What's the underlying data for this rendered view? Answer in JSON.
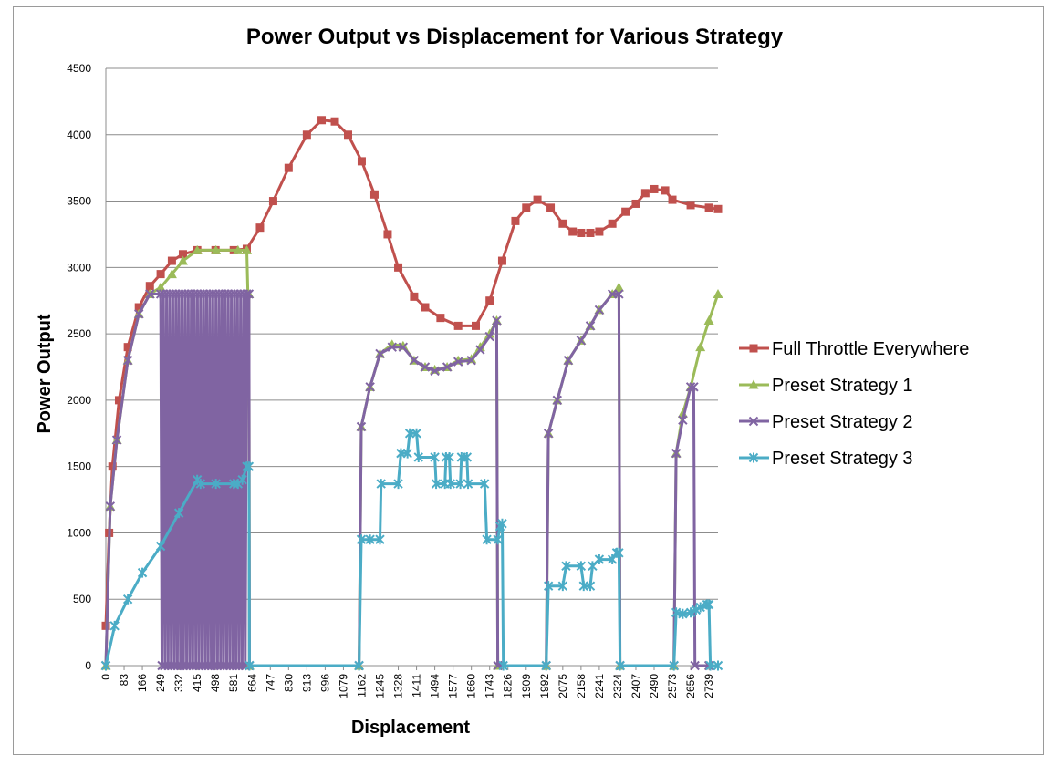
{
  "chart_data": {
    "type": "line",
    "title": "Power Output vs Displacement for Various Strategy",
    "xlabel": "Displacement",
    "ylabel": "Power Output",
    "ylim": [
      0,
      4500
    ],
    "xlim": [
      0,
      2780
    ],
    "yticks": [
      0,
      500,
      1000,
      1500,
      2000,
      2500,
      3000,
      3500,
      4000,
      4500
    ],
    "xtick_labels": [
      "0",
      "83",
      "166",
      "249",
      "332",
      "415",
      "498",
      "581",
      "664",
      "747",
      "830",
      "913",
      "996",
      "1079",
      "1162",
      "1245",
      "1328",
      "1411",
      "1494",
      "1577",
      "1660",
      "1743",
      "1826",
      "1909",
      "1992",
      "2075",
      "2158",
      "2241",
      "2324",
      "2407",
      "2490",
      "2573",
      "2656",
      "2739"
    ],
    "grid": "horizontal",
    "legend_position": "right",
    "series": [
      {
        "name": "Full Throttle Everywhere",
        "color": "#c0504d",
        "marker": "square",
        "points": [
          [
            0,
            300
          ],
          [
            15,
            1000
          ],
          [
            30,
            1500
          ],
          [
            60,
            2000
          ],
          [
            100,
            2400
          ],
          [
            150,
            2700
          ],
          [
            200,
            2860
          ],
          [
            249,
            2950
          ],
          [
            300,
            3050
          ],
          [
            350,
            3100
          ],
          [
            415,
            3130
          ],
          [
            498,
            3130
          ],
          [
            581,
            3130
          ],
          [
            640,
            3140
          ],
          [
            700,
            3300
          ],
          [
            760,
            3500
          ],
          [
            830,
            3750
          ],
          [
            913,
            4000
          ],
          [
            980,
            4110
          ],
          [
            1040,
            4100
          ],
          [
            1100,
            4000
          ],
          [
            1162,
            3800
          ],
          [
            1220,
            3550
          ],
          [
            1280,
            3250
          ],
          [
            1328,
            3000
          ],
          [
            1400,
            2780
          ],
          [
            1450,
            2700
          ],
          [
            1520,
            2620
          ],
          [
            1600,
            2560
          ],
          [
            1680,
            2560
          ],
          [
            1743,
            2750
          ],
          [
            1800,
            3050
          ],
          [
            1860,
            3350
          ],
          [
            1909,
            3450
          ],
          [
            1960,
            3510
          ],
          [
            2020,
            3450
          ],
          [
            2075,
            3330
          ],
          [
            2120,
            3270
          ],
          [
            2158,
            3260
          ],
          [
            2200,
            3260
          ],
          [
            2241,
            3270
          ],
          [
            2300,
            3330
          ],
          [
            2360,
            3420
          ],
          [
            2407,
            3480
          ],
          [
            2450,
            3560
          ],
          [
            2490,
            3590
          ],
          [
            2540,
            3580
          ],
          [
            2573,
            3510
          ],
          [
            2656,
            3470
          ],
          [
            2739,
            3450
          ],
          [
            2780,
            3440
          ]
        ]
      },
      {
        "name": "Preset Strategy 1",
        "color": "#9bbb59",
        "marker": "triangle",
        "points": [
          [
            0,
            0
          ],
          [
            20,
            1200
          ],
          [
            50,
            1700
          ],
          [
            100,
            2300
          ],
          [
            150,
            2650
          ],
          [
            200,
            2800
          ],
          [
            249,
            2850
          ],
          [
            300,
            2950
          ],
          [
            350,
            3050
          ],
          [
            415,
            3130
          ],
          [
            500,
            3130
          ],
          [
            600,
            3130
          ],
          [
            640,
            3130
          ],
          [
            645,
            2800
          ],
          [
            650,
            2800
          ],
          [
            652,
            0
          ],
          [
            1150,
            0
          ],
          [
            1160,
            1800
          ],
          [
            1200,
            2100
          ],
          [
            1245,
            2350
          ],
          [
            1300,
            2420
          ],
          [
            1350,
            2410
          ],
          [
            1400,
            2300
          ],
          [
            1450,
            2250
          ],
          [
            1494,
            2230
          ],
          [
            1550,
            2250
          ],
          [
            1600,
            2300
          ],
          [
            1660,
            2310
          ],
          [
            1700,
            2400
          ],
          [
            1743,
            2500
          ],
          [
            1775,
            2600
          ],
          [
            1780,
            0
          ],
          [
            2000,
            0
          ],
          [
            2010,
            1750
          ],
          [
            2050,
            2000
          ],
          [
            2100,
            2300
          ],
          [
            2158,
            2450
          ],
          [
            2200,
            2560
          ],
          [
            2241,
            2680
          ],
          [
            2300,
            2800
          ],
          [
            2330,
            2850
          ],
          [
            2335,
            0
          ],
          [
            2580,
            0
          ],
          [
            2590,
            1600
          ],
          [
            2620,
            1900
          ],
          [
            2656,
            2100
          ],
          [
            2700,
            2400
          ],
          [
            2739,
            2600
          ],
          [
            2780,
            2800
          ]
        ]
      },
      {
        "name": "Preset Strategy 2",
        "color": "#8064a2",
        "marker": "x",
        "points": [
          [
            0,
            0
          ],
          [
            20,
            1200
          ],
          [
            50,
            1700
          ],
          [
            100,
            2300
          ],
          [
            150,
            2650
          ],
          [
            200,
            2800
          ],
          [
            249,
            2800
          ],
          [
            255,
            0
          ],
          [
            262,
            2800
          ],
          [
            269,
            0
          ],
          [
            276,
            2800
          ],
          [
            283,
            0
          ],
          [
            290,
            2800
          ],
          [
            297,
            0
          ],
          [
            304,
            2800
          ],
          [
            311,
            0
          ],
          [
            318,
            2800
          ],
          [
            325,
            0
          ],
          [
            332,
            2800
          ],
          [
            339,
            0
          ],
          [
            346,
            2800
          ],
          [
            353,
            0
          ],
          [
            360,
            2800
          ],
          [
            367,
            0
          ],
          [
            374,
            2800
          ],
          [
            381,
            0
          ],
          [
            388,
            2800
          ],
          [
            395,
            0
          ],
          [
            402,
            2800
          ],
          [
            409,
            0
          ],
          [
            416,
            2800
          ],
          [
            423,
            0
          ],
          [
            430,
            2800
          ],
          [
            437,
            0
          ],
          [
            444,
            2800
          ],
          [
            451,
            0
          ],
          [
            458,
            2800
          ],
          [
            465,
            0
          ],
          [
            472,
            2800
          ],
          [
            479,
            0
          ],
          [
            486,
            2800
          ],
          [
            493,
            0
          ],
          [
            500,
            2800
          ],
          [
            507,
            0
          ],
          [
            514,
            2800
          ],
          [
            521,
            0
          ],
          [
            528,
            2800
          ],
          [
            535,
            0
          ],
          [
            542,
            2800
          ],
          [
            549,
            0
          ],
          [
            556,
            2800
          ],
          [
            563,
            0
          ],
          [
            570,
            2800
          ],
          [
            577,
            0
          ],
          [
            584,
            2800
          ],
          [
            591,
            0
          ],
          [
            598,
            2800
          ],
          [
            605,
            0
          ],
          [
            612,
            2800
          ],
          [
            619,
            0
          ],
          [
            626,
            2800
          ],
          [
            633,
            0
          ],
          [
            640,
            2800
          ],
          [
            650,
            2800
          ],
          [
            652,
            0
          ],
          [
            1150,
            0
          ],
          [
            1160,
            1800
          ],
          [
            1200,
            2100
          ],
          [
            1245,
            2350
          ],
          [
            1300,
            2400
          ],
          [
            1350,
            2400
          ],
          [
            1400,
            2300
          ],
          [
            1450,
            2250
          ],
          [
            1494,
            2220
          ],
          [
            1550,
            2250
          ],
          [
            1600,
            2290
          ],
          [
            1660,
            2300
          ],
          [
            1700,
            2380
          ],
          [
            1743,
            2480
          ],
          [
            1775,
            2600
          ],
          [
            1780,
            0
          ],
          [
            2000,
            0
          ],
          [
            2010,
            1750
          ],
          [
            2050,
            2000
          ],
          [
            2100,
            2300
          ],
          [
            2158,
            2450
          ],
          [
            2200,
            2560
          ],
          [
            2241,
            2680
          ],
          [
            2300,
            2800
          ],
          [
            2330,
            2800
          ],
          [
            2335,
            0
          ],
          [
            2580,
            0
          ],
          [
            2590,
            1600
          ],
          [
            2620,
            1850
          ],
          [
            2656,
            2100
          ],
          [
            2670,
            2100
          ],
          [
            2675,
            0
          ],
          [
            2739,
            0
          ]
        ]
      },
      {
        "name": "Preset Strategy 3",
        "color": "#4bacc6",
        "marker": "asterisk",
        "points": [
          [
            0,
            0
          ],
          [
            40,
            300
          ],
          [
            100,
            500
          ],
          [
            166,
            700
          ],
          [
            249,
            900
          ],
          [
            332,
            1150
          ],
          [
            415,
            1400
          ],
          [
            430,
            1370
          ],
          [
            500,
            1370
          ],
          [
            581,
            1370
          ],
          [
            600,
            1370
          ],
          [
            620,
            1400
          ],
          [
            640,
            1500
          ],
          [
            650,
            1500
          ],
          [
            652,
            0
          ],
          [
            1150,
            0
          ],
          [
            1160,
            950
          ],
          [
            1200,
            950
          ],
          [
            1245,
            950
          ],
          [
            1250,
            1370
          ],
          [
            1328,
            1370
          ],
          [
            1340,
            1600
          ],
          [
            1370,
            1600
          ],
          [
            1380,
            1750
          ],
          [
            1411,
            1750
          ],
          [
            1420,
            1570
          ],
          [
            1494,
            1570
          ],
          [
            1500,
            1370
          ],
          [
            1540,
            1370
          ],
          [
            1545,
            1570
          ],
          [
            1560,
            1570
          ],
          [
            1565,
            1370
          ],
          [
            1610,
            1370
          ],
          [
            1615,
            1570
          ],
          [
            1640,
            1570
          ],
          [
            1645,
            1370
          ],
          [
            1720,
            1370
          ],
          [
            1730,
            950
          ],
          [
            1780,
            950
          ],
          [
            1790,
            1050
          ],
          [
            1800,
            1070
          ],
          [
            1805,
            0
          ],
          [
            2000,
            0
          ],
          [
            2010,
            600
          ],
          [
            2075,
            600
          ],
          [
            2090,
            750
          ],
          [
            2158,
            750
          ],
          [
            2170,
            600
          ],
          [
            2200,
            600
          ],
          [
            2210,
            750
          ],
          [
            2241,
            800
          ],
          [
            2300,
            800
          ],
          [
            2320,
            850
          ],
          [
            2330,
            850
          ],
          [
            2335,
            0
          ],
          [
            2580,
            0
          ],
          [
            2590,
            400
          ],
          [
            2620,
            390
          ],
          [
            2656,
            400
          ],
          [
            2680,
            420
          ],
          [
            2700,
            440
          ],
          [
            2730,
            460
          ],
          [
            2739,
            460
          ],
          [
            2745,
            0
          ],
          [
            2780,
            0
          ]
        ]
      }
    ]
  }
}
